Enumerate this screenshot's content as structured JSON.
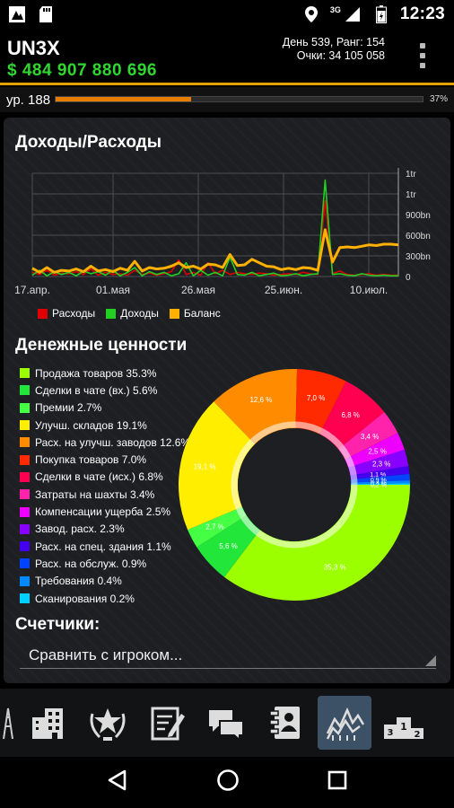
{
  "status_bar": {
    "time": "12:23",
    "network": "3G",
    "icons": [
      "app-notification-icon",
      "sd-card-icon",
      "location-icon",
      "signal-icon",
      "battery-icon"
    ]
  },
  "header": {
    "player_name": "UN3X",
    "money": "$ 484 907 880 696",
    "day_rank": "День 539, Ранг: 154",
    "points": "Очки: 34 105 058"
  },
  "level": {
    "label": "ур. 188",
    "progress_percent": 37,
    "progress_label": "37%"
  },
  "income_expense": {
    "title": "Доходы/Расходы",
    "legend": [
      {
        "name": "Расходы",
        "color": "#e00000"
      },
      {
        "name": "Доходы",
        "color": "#22d022"
      },
      {
        "name": "Баланс",
        "color": "#ffb000"
      }
    ]
  },
  "chart_data": [
    {
      "type": "line",
      "title": "Доходы/Расходы",
      "x_ticks": [
        "17.апр.",
        "01.мая",
        "26.мая",
        "25.июн.",
        "10.июл."
      ],
      "y_ticks": [
        "1tr",
        "1tr",
        "900bn",
        "600bn",
        "300bn",
        "0"
      ],
      "ylim": [
        0,
        1500
      ],
      "grid": true,
      "x": [
        0,
        2,
        4,
        6,
        8,
        10,
        12,
        14,
        16,
        18,
        20,
        22,
        24,
        26,
        28,
        30,
        32,
        34,
        36,
        38,
        40,
        42,
        44,
        46,
        48,
        50,
        52,
        54,
        56,
        58,
        60,
        62,
        64,
        66,
        68,
        70,
        72,
        74,
        76,
        78,
        80,
        82,
        84,
        86,
        88,
        90,
        92,
        94,
        96,
        98,
        100
      ],
      "series": [
        {
          "name": "Расходы",
          "color": "#e00000",
          "values": [
            60,
            30,
            90,
            20,
            50,
            40,
            70,
            30,
            110,
            20,
            60,
            30,
            40,
            20,
            90,
            30,
            50,
            20,
            40,
            70,
            240,
            30,
            60,
            20,
            200,
            40,
            90,
            30,
            60,
            40,
            30,
            50,
            40,
            20,
            30,
            40,
            30,
            60,
            40,
            30,
            1100,
            40,
            80,
            30,
            20,
            30,
            40,
            20,
            30,
            20,
            20
          ]
        },
        {
          "name": "Доходы",
          "color": "#22d022",
          "values": [
            20,
            90,
            10,
            70,
            30,
            60,
            10,
            80,
            40,
            70,
            20,
            90,
            10,
            60,
            130,
            10,
            70,
            30,
            60,
            10,
            40,
            200,
            10,
            90,
            20,
            60,
            10,
            280,
            30,
            20,
            60,
            10,
            30,
            50,
            10,
            20,
            40,
            10,
            30,
            40,
            1400,
            30,
            40,
            20,
            10,
            40,
            20,
            10,
            20,
            10,
            10
          ]
        },
        {
          "name": "Баланс",
          "color": "#ffb000",
          "values": [
            120,
            60,
            130,
            60,
            90,
            80,
            110,
            70,
            150,
            80,
            100,
            70,
            120,
            90,
            220,
            80,
            130,
            110,
            120,
            150,
            200,
            130,
            150,
            110,
            180,
            170,
            130,
            320,
            160,
            170,
            250,
            200,
            150,
            140,
            100,
            120,
            100,
            130,
            120,
            90,
            680,
            210,
            420,
            430,
            420,
            440,
            460,
            450,
            470,
            470,
            460
          ]
        }
      ]
    },
    {
      "type": "pie",
      "title": "Денежные ценности",
      "slices": [
        {
          "label": "Продажа товаров",
          "value": 35.3,
          "color": "#9cff00"
        },
        {
          "label": "Сделки в чате (вх.)",
          "value": 5.6,
          "color": "#22e63a"
        },
        {
          "label": "Премии",
          "value": 2.7,
          "color": "#44ff44"
        },
        {
          "label": "Улучш. складов",
          "value": 19.1,
          "color": "#ffee00"
        },
        {
          "label": "Расх. на улучш. заводов",
          "value": 12.6,
          "color": "#ff8c00"
        },
        {
          "label": "Покупка товаров",
          "value": 7.0,
          "color": "#ff2a00"
        },
        {
          "label": "Сделки в чате (исх.)",
          "value": 6.8,
          "color": "#ff0050"
        },
        {
          "label": "Затраты на шахты",
          "value": 3.4,
          "color": "#ff22aa"
        },
        {
          "label": "Компенсации ущерба",
          "value": 2.5,
          "color": "#ee00ff"
        },
        {
          "label": "Завод. расх.",
          "value": 2.3,
          "color": "#8800ff"
        },
        {
          "label": "Расх. на спец. здания",
          "value": 1.1,
          "color": "#4400ee"
        },
        {
          "label": "Расх. на обслуж.",
          "value": 0.9,
          "color": "#0044ff"
        },
        {
          "label": "Требования",
          "value": 0.4,
          "color": "#0088ff"
        },
        {
          "label": "Сканирования",
          "value": 0.2,
          "color": "#00d0ff"
        }
      ]
    }
  ],
  "money_values": {
    "title": "Денежные ценности",
    "items": [
      {
        "text": "Продажа товаров 35.3%",
        "pie_label": "35,3 %",
        "color": "#9cff00"
      },
      {
        "text": "Сделки в чате (вх.) 5.6%",
        "pie_label": "5,6 %",
        "color": "#22e63a"
      },
      {
        "text": "Премии 2.7%",
        "pie_label": "2,7 %",
        "color": "#44ff44"
      },
      {
        "text": "Улучш. складов 19.1%",
        "pie_label": "19,1 %",
        "color": "#ffee00"
      },
      {
        "text": "Расх. на улучш. заводов 12.6%",
        "pie_label": "12,6 %",
        "color": "#ff8c00"
      },
      {
        "text": "Покупка товаров 7.0%",
        "pie_label": "7,0 %",
        "color": "#ff2a00"
      },
      {
        "text": "Сделки в чате (исх.) 6.8%",
        "pie_label": "6,8 %",
        "color": "#ff0050"
      },
      {
        "text": "Затраты на шахты 3.4%",
        "pie_label": "3,4 %",
        "color": "#ff22aa"
      },
      {
        "text": "Компенсации ущерба 2.5%",
        "pie_label": "2,5 %",
        "color": "#ee00ff"
      },
      {
        "text": "Завод. расх. 2.3%",
        "pie_label": "2,3 %",
        "color": "#8800ff"
      },
      {
        "text": "Расх. на спец. здания 1.1%",
        "pie_label": "1,1 %",
        "color": "#4400ee"
      },
      {
        "text": "Расх. на обслуж. 0.9%",
        "pie_label": "0,9 %",
        "color": "#0044ff"
      },
      {
        "text": "Требования 0.4%",
        "pie_label": "0,4 %",
        "color": "#0088ff"
      },
      {
        "text": "Сканирования 0.2%",
        "pie_label": "0,2 %",
        "color": "#00d0ff"
      }
    ]
  },
  "counters": {
    "title": "Счетчики:",
    "compare_placeholder": "Сравнить с игроком..."
  },
  "game_nav": [
    "oil-rig-icon",
    "buildings-icon",
    "wreath-star-icon",
    "notepad-icon",
    "chat-icon",
    "contacts-icon",
    "chart-icon",
    "podium-icon"
  ],
  "system_nav": [
    "back-icon",
    "home-icon",
    "recents-icon"
  ]
}
